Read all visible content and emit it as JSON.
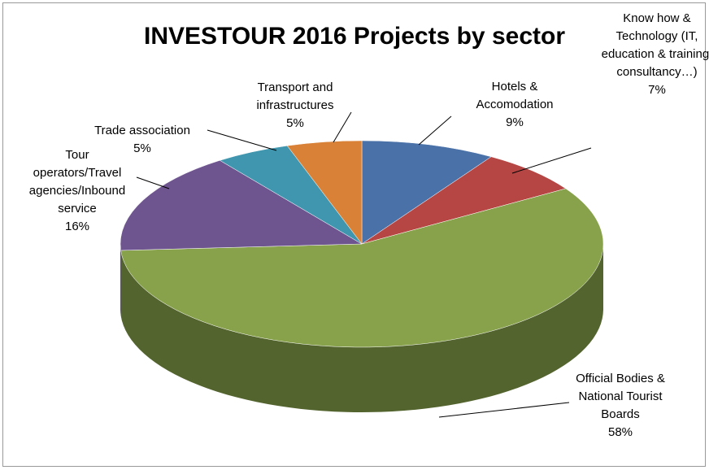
{
  "chart_data": {
    "type": "pie3d",
    "title": "INVESTOUR 2016 Projects by sector",
    "categories": [
      "Hotels & Accomodation",
      "Know how & Technology (IT, education & training, consultancy…)",
      "Official Bodies & National Tourist Boards",
      "Tour operators/Travel agencies/Inbound service",
      "Trade association",
      "Transport and infrastructures"
    ],
    "values": [
      9,
      7,
      58,
      16,
      5,
      5
    ],
    "value_labels": [
      "9%",
      "7%",
      "58%",
      "16%",
      "5%",
      "5%"
    ],
    "colors": [
      "#4a72a8",
      "#b54643",
      "#87a24b",
      "#6f5590",
      "#3f96ae",
      "#d98137"
    ]
  }
}
